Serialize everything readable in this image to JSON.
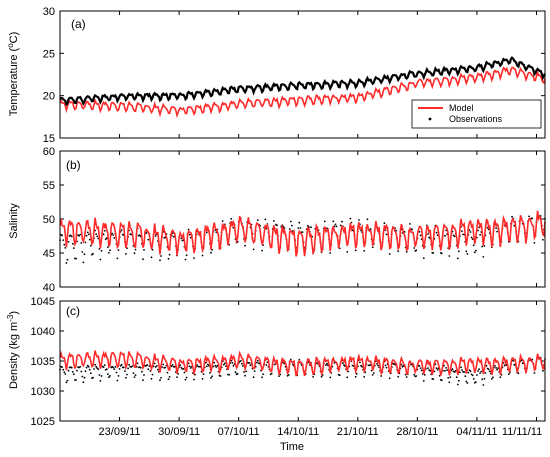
{
  "figure": {
    "xlabel": "Time",
    "xtick_labels": [
      "23/09/11",
      "30/09/11",
      "07/10/11",
      "14/10/11",
      "21/10/11",
      "28/10/11",
      "04/11/11",
      "11/11/11"
    ],
    "colors": {
      "model": "#ff2a2a",
      "observations": "#000000",
      "frame": "#000000"
    }
  },
  "chart_data": [
    {
      "type": "line",
      "panel": "(a)",
      "ylabel_main": "Temperature (",
      "ylabel_sup": "o",
      "ylabel_tail": "C)",
      "ylim": [
        15,
        30
      ],
      "yticks": [
        15,
        20,
        25,
        30
      ],
      "xlim": [
        "2011-09-16",
        "2011-11-12"
      ],
      "legend": {
        "placement": "lower-right",
        "entries": [
          "Model",
          "Observations"
        ]
      },
      "series": [
        {
          "name": "Model",
          "style": "line",
          "x": [
            "2011-09-16",
            "2011-09-23",
            "2011-09-30",
            "2011-10-07",
            "2011-10-14",
            "2011-10-21",
            "2011-10-28",
            "2011-11-04",
            "2011-11-08",
            "2011-11-12"
          ],
          "values": [
            19.0,
            18.8,
            18.3,
            19.0,
            19.5,
            19.8,
            21.5,
            22.2,
            23.0,
            22.0
          ],
          "oscillation": 0.6
        },
        {
          "name": "Observations",
          "style": "line",
          "x": [
            "2011-09-16",
            "2011-09-23",
            "2011-09-30",
            "2011-10-07",
            "2011-10-14",
            "2011-10-21",
            "2011-10-28",
            "2011-11-04",
            "2011-11-08",
            "2011-11-12"
          ],
          "values": [
            19.4,
            19.9,
            20.0,
            20.8,
            21.2,
            21.5,
            22.6,
            23.3,
            24.2,
            22.5
          ],
          "oscillation": 0.45
        }
      ]
    },
    {
      "type": "line",
      "panel": "(b)",
      "ylabel_main": "Salinity",
      "ylabel_sup": "",
      "ylabel_tail": "",
      "ylim": [
        40,
        60
      ],
      "yticks": [
        40,
        45,
        50,
        55,
        60
      ],
      "xlim": [
        "2011-09-16",
        "2011-11-12"
      ],
      "series": [
        {
          "name": "Model",
          "style": "line",
          "x": [
            "2011-09-16",
            "2011-09-23",
            "2011-09-30",
            "2011-10-07",
            "2011-10-14",
            "2011-10-21",
            "2011-10-28",
            "2011-11-04",
            "2011-11-08",
            "2011-11-12"
          ],
          "values": [
            48.5,
            48.0,
            47.0,
            48.5,
            47.0,
            48.0,
            47.5,
            48.5,
            48.5,
            49.5
          ],
          "oscillation": 2.2
        },
        {
          "name": "Observations",
          "style": "dots",
          "x": [
            "2011-09-16",
            "2011-09-23",
            "2011-09-30",
            "2011-10-07",
            "2011-10-14",
            "2011-10-21",
            "2011-10-28",
            "2011-11-04",
            "2011-11-08",
            "2011-11-12"
          ],
          "values": [
            46.0,
            47.0,
            46.5,
            48.5,
            47.5,
            48.0,
            47.0,
            47.0,
            48.5,
            49.5
          ],
          "oscillation": 2.4
        }
      ]
    },
    {
      "type": "line",
      "panel": "(c)",
      "ylabel_main": "Density (kg m",
      "ylabel_sup": "-3",
      "ylabel_tail": ")",
      "ylim": [
        1025,
        1045
      ],
      "yticks": [
        1025,
        1030,
        1035,
        1040,
        1045
      ],
      "xlim": [
        "2011-09-16",
        "2011-11-12"
      ],
      "series": [
        {
          "name": "Model",
          "style": "line",
          "x": [
            "2011-09-16",
            "2011-09-23",
            "2011-09-30",
            "2011-10-07",
            "2011-10-14",
            "2011-10-21",
            "2011-10-28",
            "2011-11-04",
            "2011-11-08",
            "2011-11-12"
          ],
          "values": [
            1035.2,
            1035.5,
            1034.5,
            1035.0,
            1034.2,
            1034.8,
            1034.2,
            1034.5,
            1034.5,
            1035.0
          ],
          "oscillation": 1.5
        },
        {
          "name": "Observations",
          "style": "dots",
          "x": [
            "2011-09-16",
            "2011-09-23",
            "2011-09-30",
            "2011-10-07",
            "2011-10-14",
            "2011-10-21",
            "2011-10-28",
            "2011-11-04",
            "2011-11-08",
            "2011-11-12"
          ],
          "values": [
            1033.0,
            1033.5,
            1033.5,
            1034.0,
            1034.0,
            1034.0,
            1033.5,
            1032.5,
            1034.0,
            1035.0
          ],
          "oscillation": 1.5
        }
      ]
    }
  ]
}
